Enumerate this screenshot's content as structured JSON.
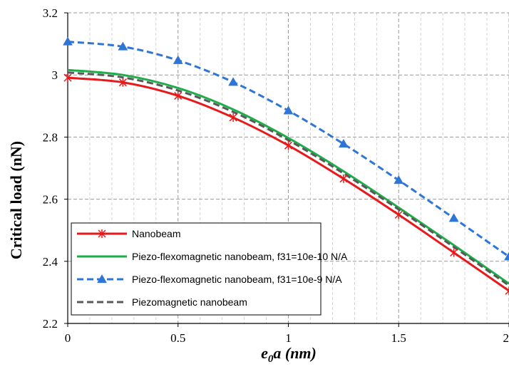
{
  "chart_data": {
    "type": "line",
    "xlabel": "e0a (nm)",
    "xlabel_parts": {
      "base": "e",
      "sub": "0",
      "rest": "a",
      "unit": "(nm)"
    },
    "ylabel": "Critical load (nN)",
    "xlim": [
      0,
      2
    ],
    "ylim": [
      2.2,
      3.2
    ],
    "x_ticks": [
      0,
      0.5,
      1,
      1.5,
      2
    ],
    "x_tick_labels": [
      "0",
      "0.5",
      "1",
      "1.5",
      "2"
    ],
    "y_ticks": [
      2.2,
      2.4,
      2.6,
      2.8,
      3.0,
      3.2
    ],
    "y_tick_labels": [
      "2.2",
      "2.4",
      "2.6",
      "2.8",
      "3",
      "3.2"
    ],
    "x_minor_step": 0.1,
    "grid": "dashed major and minor",
    "legend_position": "bottom-left",
    "x": [
      0,
      0.25,
      0.5,
      0.75,
      1.0,
      1.25,
      1.5,
      1.75,
      2.0
    ],
    "series": [
      {
        "name": "Nanobeam",
        "color": "#e8191b",
        "line_style": "solid",
        "marker": "star",
        "values": [
          2.991,
          2.976,
          2.933,
          2.863,
          2.773,
          2.666,
          2.55,
          2.428,
          2.305
        ]
      },
      {
        "name": "Piezo-flexomagnetic nanobeam, f31=10e-10 N/A",
        "color": "#1fad4b",
        "line_style": "solid",
        "marker": "none",
        "values": [
          3.016,
          3.0,
          2.958,
          2.889,
          2.797,
          2.69,
          2.573,
          2.452,
          2.328
        ]
      },
      {
        "name": "Piezo-flexomagnetic nanobeam, f31=10e-9 N/A",
        "color": "#2e75d6",
        "line_style": "dashed",
        "marker": "triangle",
        "values": [
          3.107,
          3.091,
          3.047,
          2.977,
          2.885,
          2.778,
          2.661,
          2.539,
          2.415
        ]
      },
      {
        "name": "Piezomagnetic nanobeam",
        "color": "#595959",
        "line_style": "dashed",
        "marker": "none",
        "values": [
          3.008,
          2.992,
          2.95,
          2.881,
          2.79,
          2.683,
          2.567,
          2.446,
          2.322
        ]
      }
    ]
  }
}
